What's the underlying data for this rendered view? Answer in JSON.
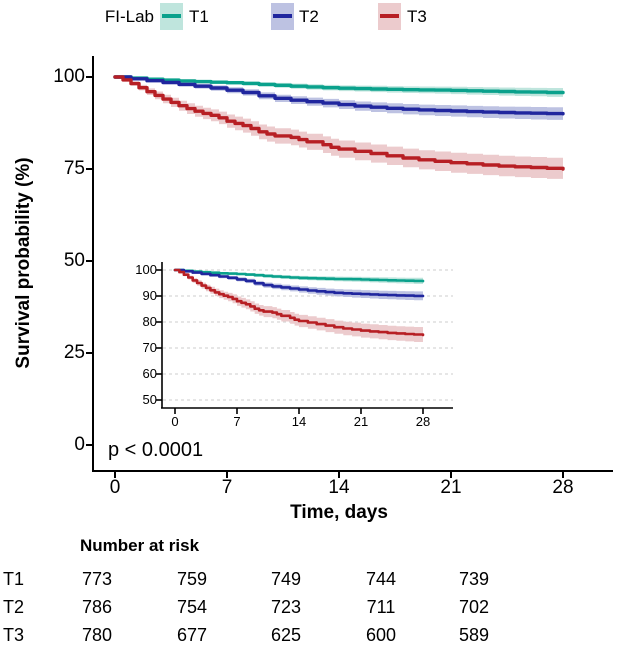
{
  "legend": {
    "title": "FI-Lab",
    "items": [
      {
        "label": "T1",
        "line_color": "#0aa18c",
        "band_color": "#bfe5dd"
      },
      {
        "label": "T2",
        "line_color": "#20269e",
        "band_color": "#bdc2e2"
      },
      {
        "label": "T3",
        "line_color": "#b71f24",
        "band_color": "#eccbcd"
      }
    ]
  },
  "chart_data": {
    "type": "line",
    "variant": "kaplan_meier_step_with_confidence_bands",
    "title": "",
    "xlabel": "Time, days",
    "ylabel": "Survival probability (%)",
    "xlim": [
      0,
      28
    ],
    "x_ticks": [
      "0",
      "7",
      "14",
      "21",
      "28"
    ],
    "main_panel": {
      "ylim": [
        0,
        100
      ],
      "y_ticks": [
        "100",
        "75",
        "50",
        "25",
        "0"
      ],
      "grid": "off"
    },
    "inset_panel": {
      "ylim": [
        50,
        100
      ],
      "y_ticks": [
        "100",
        "90",
        "80",
        "70",
        "60",
        "50"
      ],
      "x_ticks": [
        "0",
        "7",
        "14",
        "21",
        "28"
      ],
      "grid": "dashed-horizontal"
    },
    "pvalue_label": "p < 0.0001",
    "series": [
      {
        "name": "T1",
        "color": "#0aa18c",
        "band_color": "#bfe5dd",
        "points": [
          [
            0,
            100,
            0.15
          ],
          [
            1,
            99.7,
            0.2
          ],
          [
            2,
            99.4,
            0.25
          ],
          [
            3,
            99.15,
            0.3
          ],
          [
            4,
            98.95,
            0.35
          ],
          [
            5,
            98.75,
            0.4
          ],
          [
            6,
            98.6,
            0.45
          ],
          [
            7,
            98.45,
            0.5
          ],
          [
            8,
            98.25,
            0.55
          ],
          [
            9,
            98.0,
            0.6
          ],
          [
            10,
            97.75,
            0.65
          ],
          [
            11,
            97.5,
            0.7
          ],
          [
            12,
            97.3,
            0.72
          ],
          [
            13,
            97.1,
            0.75
          ],
          [
            14,
            96.95,
            0.78
          ],
          [
            15,
            96.85,
            0.8
          ],
          [
            16,
            96.75,
            0.85
          ],
          [
            17,
            96.65,
            0.88
          ],
          [
            18,
            96.55,
            0.9
          ],
          [
            19,
            96.5,
            0.92
          ],
          [
            20,
            96.45,
            0.95
          ],
          [
            21,
            96.35,
            1.0
          ],
          [
            22,
            96.25,
            1.02
          ],
          [
            23,
            96.15,
            1.05
          ],
          [
            24,
            96.05,
            1.1
          ],
          [
            25,
            95.95,
            1.12
          ],
          [
            26,
            95.9,
            1.15
          ],
          [
            27,
            95.8,
            1.2
          ],
          [
            28,
            95.75,
            1.25
          ]
        ]
      },
      {
        "name": "T2",
        "color": "#20269e",
        "band_color": "#bdc2e2",
        "points": [
          [
            0,
            100,
            0.15
          ],
          [
            1,
            99.5,
            0.25
          ],
          [
            2,
            99.0,
            0.35
          ],
          [
            3,
            98.5,
            0.45
          ],
          [
            4,
            98.0,
            0.55
          ],
          [
            5,
            97.5,
            0.65
          ],
          [
            6,
            97.0,
            0.72
          ],
          [
            7,
            96.4,
            0.8
          ],
          [
            8,
            95.8,
            0.85
          ],
          [
            9,
            94.9,
            0.92
          ],
          [
            10,
            94.2,
            1.0
          ],
          [
            11,
            93.7,
            1.05
          ],
          [
            12,
            93.3,
            1.1
          ],
          [
            13,
            92.9,
            1.15
          ],
          [
            14,
            92.5,
            1.2
          ],
          [
            15,
            92.1,
            1.25
          ],
          [
            16,
            91.8,
            1.3
          ],
          [
            17,
            91.5,
            1.35
          ],
          [
            18,
            91.25,
            1.4
          ],
          [
            19,
            91.05,
            1.45
          ],
          [
            20,
            90.9,
            1.5
          ],
          [
            21,
            90.75,
            1.52
          ],
          [
            22,
            90.6,
            1.55
          ],
          [
            23,
            90.45,
            1.6
          ],
          [
            24,
            90.35,
            1.62
          ],
          [
            25,
            90.25,
            1.65
          ],
          [
            26,
            90.15,
            1.7
          ],
          [
            27,
            90.05,
            1.72
          ],
          [
            28,
            90.0,
            1.75
          ]
        ]
      },
      {
        "name": "T3",
        "color": "#b71f24",
        "band_color": "#eccbcd",
        "points": [
          [
            0,
            100,
            0.2
          ],
          [
            0.5,
            99.2,
            0.4
          ],
          [
            1,
            98.2,
            0.6
          ],
          [
            1.5,
            97.1,
            0.75
          ],
          [
            2,
            96.0,
            0.9
          ],
          [
            2.5,
            95.0,
            1.05
          ],
          [
            3,
            94.0,
            1.15
          ],
          [
            3.5,
            93.1,
            1.25
          ],
          [
            4,
            92.2,
            1.35
          ],
          [
            4.5,
            91.4,
            1.45
          ],
          [
            5,
            90.7,
            1.5
          ],
          [
            5.5,
            90.1,
            1.55
          ],
          [
            6,
            89.6,
            1.6
          ],
          [
            6.5,
            88.9,
            1.7
          ],
          [
            7,
            88.0,
            1.8
          ],
          [
            7.5,
            87.4,
            1.85
          ],
          [
            8,
            86.8,
            1.9
          ],
          [
            8.5,
            86.0,
            1.95
          ],
          [
            9,
            85.1,
            2.0
          ],
          [
            9.5,
            84.5,
            2.05
          ],
          [
            10,
            84.0,
            2.1
          ],
          [
            11,
            83.6,
            2.12
          ],
          [
            11.5,
            83.0,
            2.15
          ],
          [
            12,
            82.4,
            2.2
          ],
          [
            13,
            81.6,
            2.25
          ],
          [
            13.5,
            80.9,
            2.3
          ],
          [
            14,
            80.4,
            2.35
          ],
          [
            15,
            79.8,
            2.4
          ],
          [
            16,
            79.2,
            2.45
          ],
          [
            17,
            78.6,
            2.5
          ],
          [
            18,
            78.0,
            2.55
          ],
          [
            19,
            77.5,
            2.6
          ],
          [
            20,
            77.1,
            2.65
          ],
          [
            21,
            76.7,
            2.7
          ],
          [
            22,
            76.4,
            2.72
          ],
          [
            23,
            76.1,
            2.75
          ],
          [
            24,
            75.8,
            2.78
          ],
          [
            25,
            75.6,
            2.8
          ],
          [
            26,
            75.4,
            2.85
          ],
          [
            27,
            75.2,
            2.88
          ],
          [
            28,
            75.0,
            2.9
          ]
        ]
      }
    ]
  },
  "risk_table": {
    "title": "Number at risk",
    "time_points": [
      0,
      7,
      14,
      21,
      28
    ],
    "rows": [
      {
        "label": "T1",
        "values": [
          773,
          759,
          749,
          744,
          739
        ]
      },
      {
        "label": "T2",
        "values": [
          786,
          754,
          723,
          711,
          702
        ]
      },
      {
        "label": "T3",
        "values": [
          780,
          677,
          625,
          600,
          589
        ]
      }
    ]
  }
}
